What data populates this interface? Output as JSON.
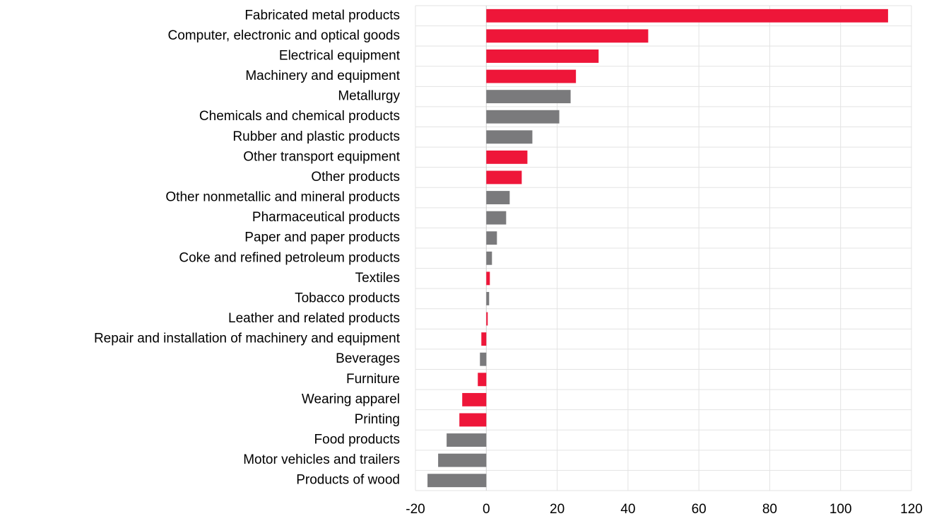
{
  "chart_data": {
    "type": "barh",
    "categories": [
      "Fabricated metal products",
      "Computer, electronic and optical goods",
      "Electrical equipment",
      "Machinery and equipment",
      "Metallurgy",
      "Chemicals and chemical products",
      "Rubber and plastic products",
      "Other transport equipment",
      "Other products",
      "Other nonmetallic and mineral products",
      "Pharmaceutical products",
      "Paper and paper products",
      "Coke and refined petroleum products",
      "Textiles",
      "Tobacco products",
      "Leather and related products",
      "Repair and installation of machinery and equipment",
      "Beverages",
      "Furniture",
      "Wearing apparel",
      "Printing",
      "Food products",
      "Motor vehicles and trailers",
      "Products of wood"
    ],
    "values": [
      113.4,
      45.7,
      31.7,
      25.3,
      23.8,
      20.6,
      13,
      11.6,
      10,
      6.6,
      5.6,
      3,
      1.6,
      1,
      0.8,
      0.4,
      -1.4,
      -1.8,
      -2.4,
      -6.8,
      -7.6,
      -11.2,
      -13.6,
      -16.6
    ],
    "colors": [
      "#ee1639",
      "#ee1639",
      "#ee1639",
      "#ee1639",
      "#7a7a7c",
      "#7a7a7c",
      "#7a7a7c",
      "#ee1639",
      "#ee1639",
      "#7a7a7c",
      "#7a7a7c",
      "#7a7a7c",
      "#7a7a7c",
      "#ee1639",
      "#7a7a7c",
      "#ee1639",
      "#ee1639",
      "#7a7a7c",
      "#ee1639",
      "#ee1639",
      "#ee1639",
      "#7a7a7c",
      "#7a7a7c",
      "#7a7a7c"
    ],
    "xlim": [
      -20,
      120
    ],
    "xticks": [
      -20,
      0,
      20,
      40,
      60,
      80,
      100,
      120
    ],
    "grid": true
  }
}
